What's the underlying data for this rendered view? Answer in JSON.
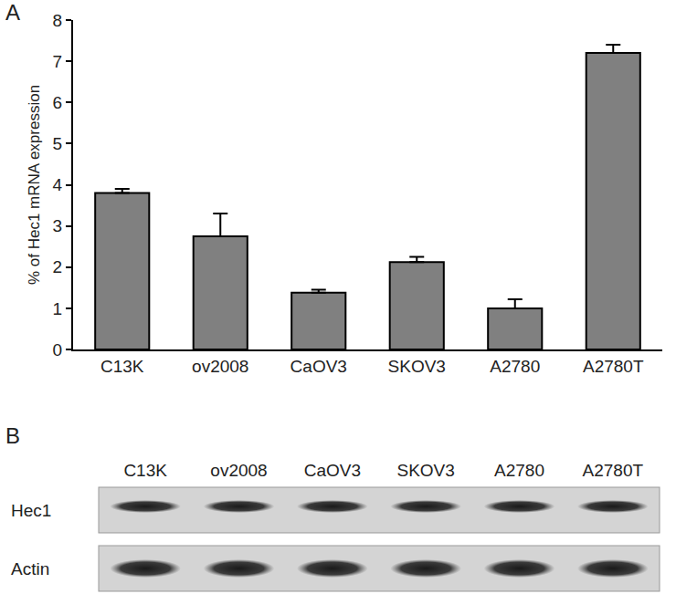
{
  "chart_data": {
    "type": "bar",
    "annotations": [
      "A"
    ],
    "y_label": "% of Hec1 mRNA expression",
    "categories": [
      "C13K",
      "ov2008",
      "CaOV3",
      "SKOV3",
      "A2780",
      "A2780T"
    ],
    "values": [
      3.8,
      2.75,
      1.38,
      2.12,
      1.0,
      7.2
    ],
    "errors": [
      0.1,
      0.55,
      0.07,
      0.13,
      0.22,
      0.2
    ],
    "color": "#808080",
    "ylim": [
      0,
      8
    ],
    "yticks": [
      0,
      1,
      2,
      3,
      4,
      5,
      6,
      7,
      8
    ],
    "grid": false
  },
  "blot": {
    "label": "B",
    "lanes": [
      "C13K",
      "ov2008",
      "CaOV3",
      "SKOV3",
      "A2780",
      "A2780T"
    ],
    "rows": [
      "Hec1",
      "Actin"
    ]
  }
}
